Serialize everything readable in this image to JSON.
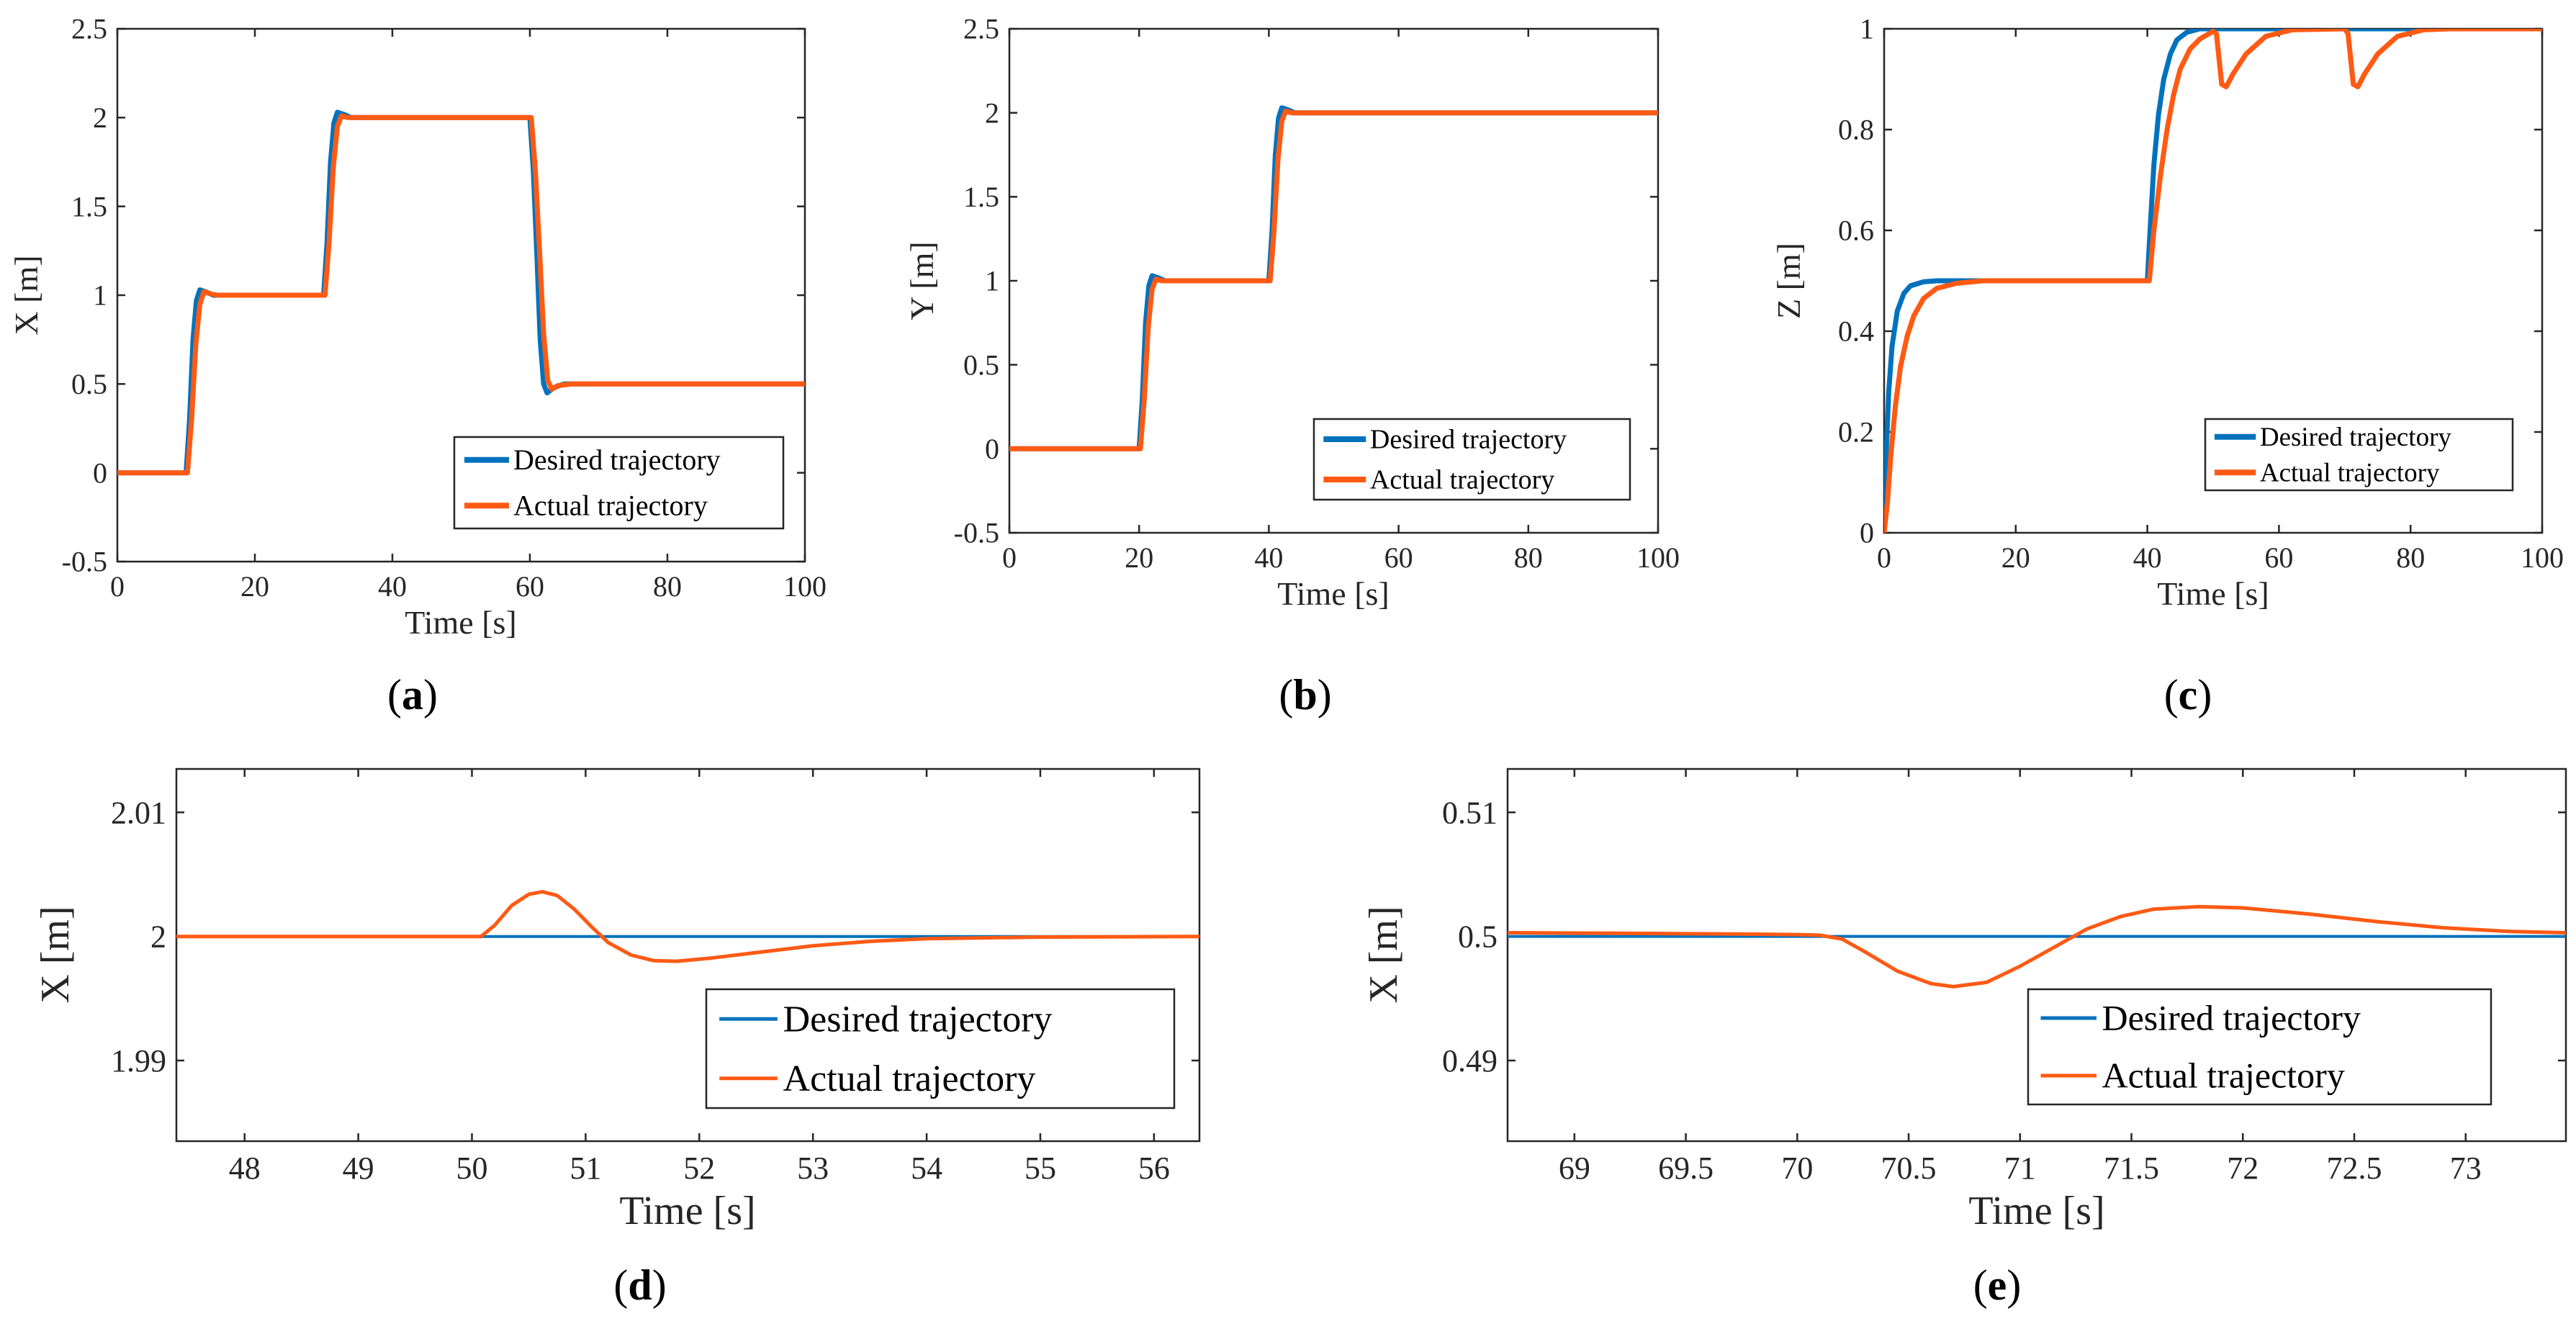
{
  "colors": {
    "desired": "#0072BD",
    "actual": "#FF5A14",
    "axis": "#262626"
  },
  "chart_data": [
    {
      "id": "a",
      "type": "line",
      "caption": "a",
      "caption_paren": [
        "(",
        ")"
      ],
      "xlabel": "Time [s]",
      "ylabel": "X [m]",
      "xlim": [
        0,
        100
      ],
      "ylim": [
        -0.5,
        2.5
      ],
      "xticks": [
        0,
        20,
        40,
        60,
        80,
        100
      ],
      "xtick_labels": [
        "0",
        "20",
        "40",
        "60",
        "80",
        "100"
      ],
      "yticks": [
        -0.5,
        0,
        0.5,
        1,
        1.5,
        2,
        2.5
      ],
      "ytick_labels": [
        "-0.5",
        "0",
        "0.5",
        "1",
        "1.5",
        "2",
        "2.5"
      ],
      "legend": "bottom-right",
      "series": [
        {
          "name": "Desired trajectory",
          "points": [
            [
              0,
              0
            ],
            [
              10,
              0
            ],
            [
              10.5,
              0.3
            ],
            [
              11,
              0.75
            ],
            [
              11.5,
              0.97
            ],
            [
              12,
              1.03
            ],
            [
              12.8,
              1.02
            ],
            [
              14,
              1.0
            ],
            [
              30,
              1.0
            ],
            [
              30.5,
              1.3
            ],
            [
              31,
              1.75
            ],
            [
              31.5,
              1.97
            ],
            [
              32,
              2.03
            ],
            [
              32.8,
              2.02
            ],
            [
              34,
              2.0
            ],
            [
              60,
              2.0
            ],
            [
              60.5,
              1.7
            ],
            [
              61,
              1.25
            ],
            [
              61.5,
              0.75
            ],
            [
              62,
              0.5
            ],
            [
              62.5,
              0.45
            ],
            [
              63.5,
              0.48
            ],
            [
              65,
              0.5
            ],
            [
              100,
              0.5
            ]
          ]
        },
        {
          "name": "Actual trajectory",
          "points": [
            [
              0,
              0
            ],
            [
              10.2,
              0
            ],
            [
              10.8,
              0.3
            ],
            [
              11.4,
              0.72
            ],
            [
              12,
              0.95
            ],
            [
              12.6,
              1.02
            ],
            [
              13.3,
              1.01
            ],
            [
              14.5,
              1.0
            ],
            [
              30.2,
              1.0
            ],
            [
              30.8,
              1.3
            ],
            [
              31.4,
              1.72
            ],
            [
              32,
              1.95
            ],
            [
              32.6,
              2.01
            ],
            [
              33.5,
              2.0
            ],
            [
              60.2,
              2.0
            ],
            [
              60.8,
              1.7
            ],
            [
              61.4,
              1.25
            ],
            [
              62,
              0.78
            ],
            [
              62.6,
              0.52
            ],
            [
              63.2,
              0.47
            ],
            [
              64,
              0.49
            ],
            [
              66,
              0.5
            ],
            [
              100,
              0.5
            ]
          ]
        }
      ]
    },
    {
      "id": "b",
      "type": "line",
      "caption": "b",
      "caption_paren": [
        "(",
        ")"
      ],
      "xlabel": "Time [s]",
      "ylabel": "Y [m]",
      "xlim": [
        0,
        100
      ],
      "ylim": [
        -0.5,
        2.5
      ],
      "xticks": [
        0,
        20,
        40,
        60,
        80,
        100
      ],
      "xtick_labels": [
        "0",
        "20",
        "40",
        "60",
        "80",
        "100"
      ],
      "yticks": [
        -0.5,
        0,
        0.5,
        1,
        1.5,
        2,
        2.5
      ],
      "ytick_labels": [
        "-0.5",
        "0",
        "0.5",
        "1",
        "1.5",
        "2",
        "2.5"
      ],
      "legend": "center-right",
      "series": [
        {
          "name": "Desired trajectory",
          "points": [
            [
              0,
              0
            ],
            [
              20,
              0
            ],
            [
              20.5,
              0.3
            ],
            [
              21,
              0.75
            ],
            [
              21.5,
              0.97
            ],
            [
              22,
              1.03
            ],
            [
              22.8,
              1.02
            ],
            [
              24,
              1.0
            ],
            [
              40,
              1.0
            ],
            [
              40.5,
              1.3
            ],
            [
              41,
              1.75
            ],
            [
              41.5,
              1.97
            ],
            [
              42,
              2.03
            ],
            [
              42.8,
              2.02
            ],
            [
              44,
              2.0
            ],
            [
              100,
              2.0
            ]
          ]
        },
        {
          "name": "Actual trajectory",
          "points": [
            [
              0,
              0
            ],
            [
              20.2,
              0
            ],
            [
              20.8,
              0.3
            ],
            [
              21.4,
              0.72
            ],
            [
              22,
              0.95
            ],
            [
              22.6,
              1.01
            ],
            [
              23.5,
              1.0
            ],
            [
              40.2,
              1.0
            ],
            [
              40.8,
              1.3
            ],
            [
              41.4,
              1.72
            ],
            [
              42,
              1.95
            ],
            [
              42.6,
              2.01
            ],
            [
              43.5,
              2.0
            ],
            [
              100,
              2.0
            ]
          ]
        }
      ]
    },
    {
      "id": "c",
      "type": "line",
      "caption": "c",
      "caption_paren": [
        "(",
        ")"
      ],
      "xlabel": "Time [s]",
      "ylabel": "Z [m]",
      "xlim": [
        0,
        100
      ],
      "ylim": [
        0,
        1
      ],
      "xticks": [
        0,
        20,
        40,
        60,
        80,
        100
      ],
      "xtick_labels": [
        "0",
        "20",
        "40",
        "60",
        "80",
        "100"
      ],
      "yticks": [
        0,
        0.2,
        0.4,
        0.6,
        0.8,
        1
      ],
      "ytick_labels": [
        "0",
        "0.2",
        "0.4",
        "0.6",
        "0.8",
        "1"
      ],
      "legend": "bottom-right",
      "series": [
        {
          "name": "Desired trajectory",
          "points": [
            [
              0,
              0
            ],
            [
              0.3,
              0.15
            ],
            [
              0.7,
              0.28
            ],
            [
              1.2,
              0.37
            ],
            [
              2,
              0.44
            ],
            [
              3,
              0.475
            ],
            [
              4,
              0.49
            ],
            [
              6,
              0.498
            ],
            [
              8,
              0.5
            ],
            [
              40,
              0.5
            ],
            [
              40.5,
              0.62
            ],
            [
              41,
              0.73
            ],
            [
              41.7,
              0.83
            ],
            [
              42.5,
              0.9
            ],
            [
              43.5,
              0.95
            ],
            [
              44.5,
              0.978
            ],
            [
              46,
              0.993
            ],
            [
              48,
              1.0
            ],
            [
              100,
              1.0
            ]
          ]
        },
        {
          "name": "Actual trajectory",
          "points": [
            [
              0,
              0
            ],
            [
              0.5,
              0.06
            ],
            [
              1,
              0.15
            ],
            [
              1.7,
              0.25
            ],
            [
              2.5,
              0.33
            ],
            [
              3.5,
              0.39
            ],
            [
              4.5,
              0.43
            ],
            [
              6,
              0.465
            ],
            [
              8,
              0.485
            ],
            [
              11,
              0.495
            ],
            [
              15,
              0.5
            ],
            [
              40.3,
              0.5
            ],
            [
              41,
              0.6
            ],
            [
              42,
              0.71
            ],
            [
              43,
              0.8
            ],
            [
              44,
              0.87
            ],
            [
              45,
              0.92
            ],
            [
              46.5,
              0.96
            ],
            [
              48,
              0.98
            ],
            [
              50,
              0.995
            ],
            [
              50.5,
              0.99
            ],
            [
              51.3,
              0.89
            ],
            [
              52,
              0.885
            ],
            [
              53,
              0.91
            ],
            [
              55,
              0.95
            ],
            [
              58,
              0.985
            ],
            [
              62,
              0.998
            ],
            [
              70,
              1.0
            ],
            [
              70.5,
              0.99
            ],
            [
              71.3,
              0.89
            ],
            [
              72,
              0.885
            ],
            [
              73,
              0.91
            ],
            [
              75,
              0.95
            ],
            [
              78,
              0.985
            ],
            [
              82,
              0.998
            ],
            [
              86,
              1.0
            ],
            [
              100,
              1.0
            ]
          ]
        }
      ]
    },
    {
      "id": "d",
      "type": "line",
      "caption": "d",
      "caption_paren": [
        "(",
        ")"
      ],
      "xlabel": "Time [s]",
      "ylabel": "X [m]",
      "xlim": [
        47.4,
        56.4
      ],
      "ylim": [
        1.9835,
        2.0135
      ],
      "xticks": [
        48,
        49,
        50,
        51,
        52,
        53,
        54,
        55,
        56
      ],
      "xtick_labels": [
        "48",
        "49",
        "50",
        "51",
        "52",
        "53",
        "54",
        "55",
        "56"
      ],
      "yticks": [
        1.99,
        2,
        2.01
      ],
      "ytick_labels": [
        "1.99",
        "2",
        "2.01"
      ],
      "legend": "bottom-right",
      "series": [
        {
          "name": "Desired trajectory",
          "points": [
            [
              47.4,
              2.0
            ],
            [
              56.4,
              2.0
            ]
          ]
        },
        {
          "name": "Actual trajectory",
          "points": [
            [
              47.4,
              2.0
            ],
            [
              50.08,
              2.0
            ],
            [
              50.2,
              2.0009
            ],
            [
              50.35,
              2.0025
            ],
            [
              50.5,
              2.0034
            ],
            [
              50.62,
              2.0036
            ],
            [
              50.75,
              2.0033
            ],
            [
              50.9,
              2.0022
            ],
            [
              51.05,
              2.0008
            ],
            [
              51.2,
              1.9995
            ],
            [
              51.4,
              1.9985
            ],
            [
              51.6,
              1.99805
            ],
            [
              51.8,
              1.998
            ],
            [
              52.1,
              1.99825
            ],
            [
              52.5,
              1.9987
            ],
            [
              53,
              1.99925
            ],
            [
              53.5,
              1.9996
            ],
            [
              54,
              1.99982
            ],
            [
              55,
              1.99995
            ],
            [
              56.4,
              2.0
            ]
          ]
        }
      ]
    },
    {
      "id": "e",
      "type": "line",
      "caption": "e",
      "caption_paren": [
        "(",
        ")"
      ],
      "xlabel": "Time [s]",
      "ylabel": "X [m]",
      "xlim": [
        68.7,
        73.45
      ],
      "ylim": [
        0.4835,
        0.5135
      ],
      "xticks": [
        69,
        69.5,
        70,
        70.5,
        71,
        71.5,
        72,
        72.5,
        73
      ],
      "xtick_labels": [
        "69",
        "69.5",
        "70",
        "70.5",
        "71",
        "71.5",
        "72",
        "72.5",
        "73"
      ],
      "yticks": [
        0.49,
        0.5,
        0.51
      ],
      "ytick_labels": [
        "0.49",
        "0.5",
        "0.51"
      ],
      "legend": "bottom-right",
      "series": [
        {
          "name": "Desired trajectory",
          "points": [
            [
              68.7,
              0.5
            ],
            [
              73.45,
              0.5
            ]
          ]
        },
        {
          "name": "Actual trajectory",
          "points": [
            [
              68.7,
              0.5003
            ],
            [
              69.2,
              0.50025
            ],
            [
              69.7,
              0.5002
            ],
            [
              70.0,
              0.50015
            ],
            [
              70.1,
              0.5001
            ],
            [
              70.2,
              0.4998
            ],
            [
              70.3,
              0.4988
            ],
            [
              70.45,
              0.4972
            ],
            [
              70.6,
              0.4962
            ],
            [
              70.7,
              0.49595
            ],
            [
              70.85,
              0.4963
            ],
            [
              71.0,
              0.4976
            ],
            [
              71.15,
              0.4991
            ],
            [
              71.3,
              0.5006
            ],
            [
              71.45,
              0.5016
            ],
            [
              71.6,
              0.5022
            ],
            [
              71.8,
              0.5024
            ],
            [
              72.0,
              0.5023
            ],
            [
              72.3,
              0.5018
            ],
            [
              72.6,
              0.5012
            ],
            [
              72.9,
              0.5007
            ],
            [
              73.2,
              0.5004
            ],
            [
              73.45,
              0.5003
            ]
          ]
        }
      ]
    }
  ]
}
